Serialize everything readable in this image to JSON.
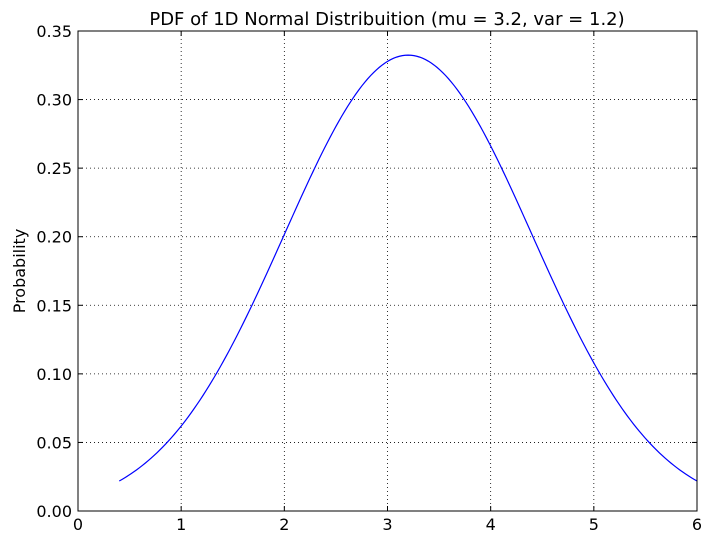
{
  "chart_data": {
    "type": "line",
    "title": "PDF of 1D Normal Distribuition (mu = 3.2, var = 1.2)",
    "xlabel": "",
    "ylabel": "Probability",
    "xlim": [
      0,
      6
    ],
    "ylim": [
      0,
      0.35
    ],
    "xticks": [
      0,
      1,
      2,
      3,
      4,
      5,
      6
    ],
    "xtick_labels": [
      "0",
      "1",
      "2",
      "3",
      "4",
      "5",
      "6"
    ],
    "yticks": [
      0.0,
      0.05,
      0.1,
      0.15,
      0.2,
      0.25,
      0.3,
      0.35
    ],
    "ytick_labels": [
      "0.00",
      "0.05",
      "0.10",
      "0.15",
      "0.20",
      "0.25",
      "0.30",
      "0.35"
    ],
    "grid": true,
    "series": [
      {
        "color": "#0000ff",
        "x": [
          0.4,
          0.6,
          0.8,
          1.0,
          1.2,
          1.4,
          1.6,
          1.8,
          2.0,
          2.2,
          2.4,
          2.6,
          2.8,
          3.0,
          3.2,
          3.4,
          3.6,
          3.8,
          4.0,
          4.2,
          4.4,
          4.6,
          4.8,
          5.0,
          5.2,
          5.4,
          5.6,
          5.8,
          6.0
        ],
        "y": [
          0.0225,
          0.0326,
          0.0459,
          0.0612,
          0.0808,
          0.1036,
          0.128,
          0.1532,
          0.2025,
          0.2286,
          0.2527,
          0.2773,
          0.3049,
          0.3285,
          0.3324,
          0.3285,
          0.3049,
          0.2773,
          0.2527,
          0.2286,
          0.1786,
          0.1532,
          0.128,
          0.1036,
          0.0808,
          0.0612,
          0.0459,
          0.0326,
          0.0225
        ]
      }
    ]
  }
}
